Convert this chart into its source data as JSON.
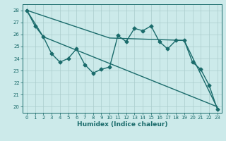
{
  "xlabel": "Humidex (Indice chaleur)",
  "bg_color": "#cceaea",
  "line_color": "#1a6b6b",
  "grid_color": "#aacccc",
  "xlim": [
    -0.5,
    23.5
  ],
  "ylim": [
    19.5,
    28.5
  ],
  "yticks": [
    20,
    21,
    22,
    23,
    24,
    25,
    26,
    27,
    28
  ],
  "xticks": [
    0,
    1,
    2,
    3,
    4,
    5,
    6,
    7,
    8,
    9,
    10,
    11,
    12,
    13,
    14,
    15,
    16,
    17,
    18,
    19,
    20,
    21,
    22,
    23
  ],
  "line1_x": [
    0,
    1,
    2,
    3,
    4,
    5,
    6,
    7,
    8,
    9,
    10,
    11,
    12,
    13,
    14,
    15,
    16,
    17,
    18,
    19,
    20,
    21,
    22,
    23
  ],
  "line1_y": [
    28.0,
    26.7,
    25.8,
    24.4,
    23.7,
    24.0,
    24.8,
    23.5,
    22.8,
    23.1,
    23.3,
    25.9,
    25.4,
    26.5,
    26.3,
    26.7,
    25.4,
    24.8,
    25.5,
    25.5,
    23.7,
    23.1,
    21.8,
    19.8
  ],
  "line2_x": [
    0,
    2,
    23
  ],
  "line2_y": [
    28.0,
    25.8,
    20.0
  ],
  "line3_x": [
    0,
    10,
    19,
    23
  ],
  "line3_y": [
    28.0,
    25.7,
    25.5,
    19.9
  ],
  "marker": "D",
  "markersize": 2.5,
  "linewidth": 1.0
}
